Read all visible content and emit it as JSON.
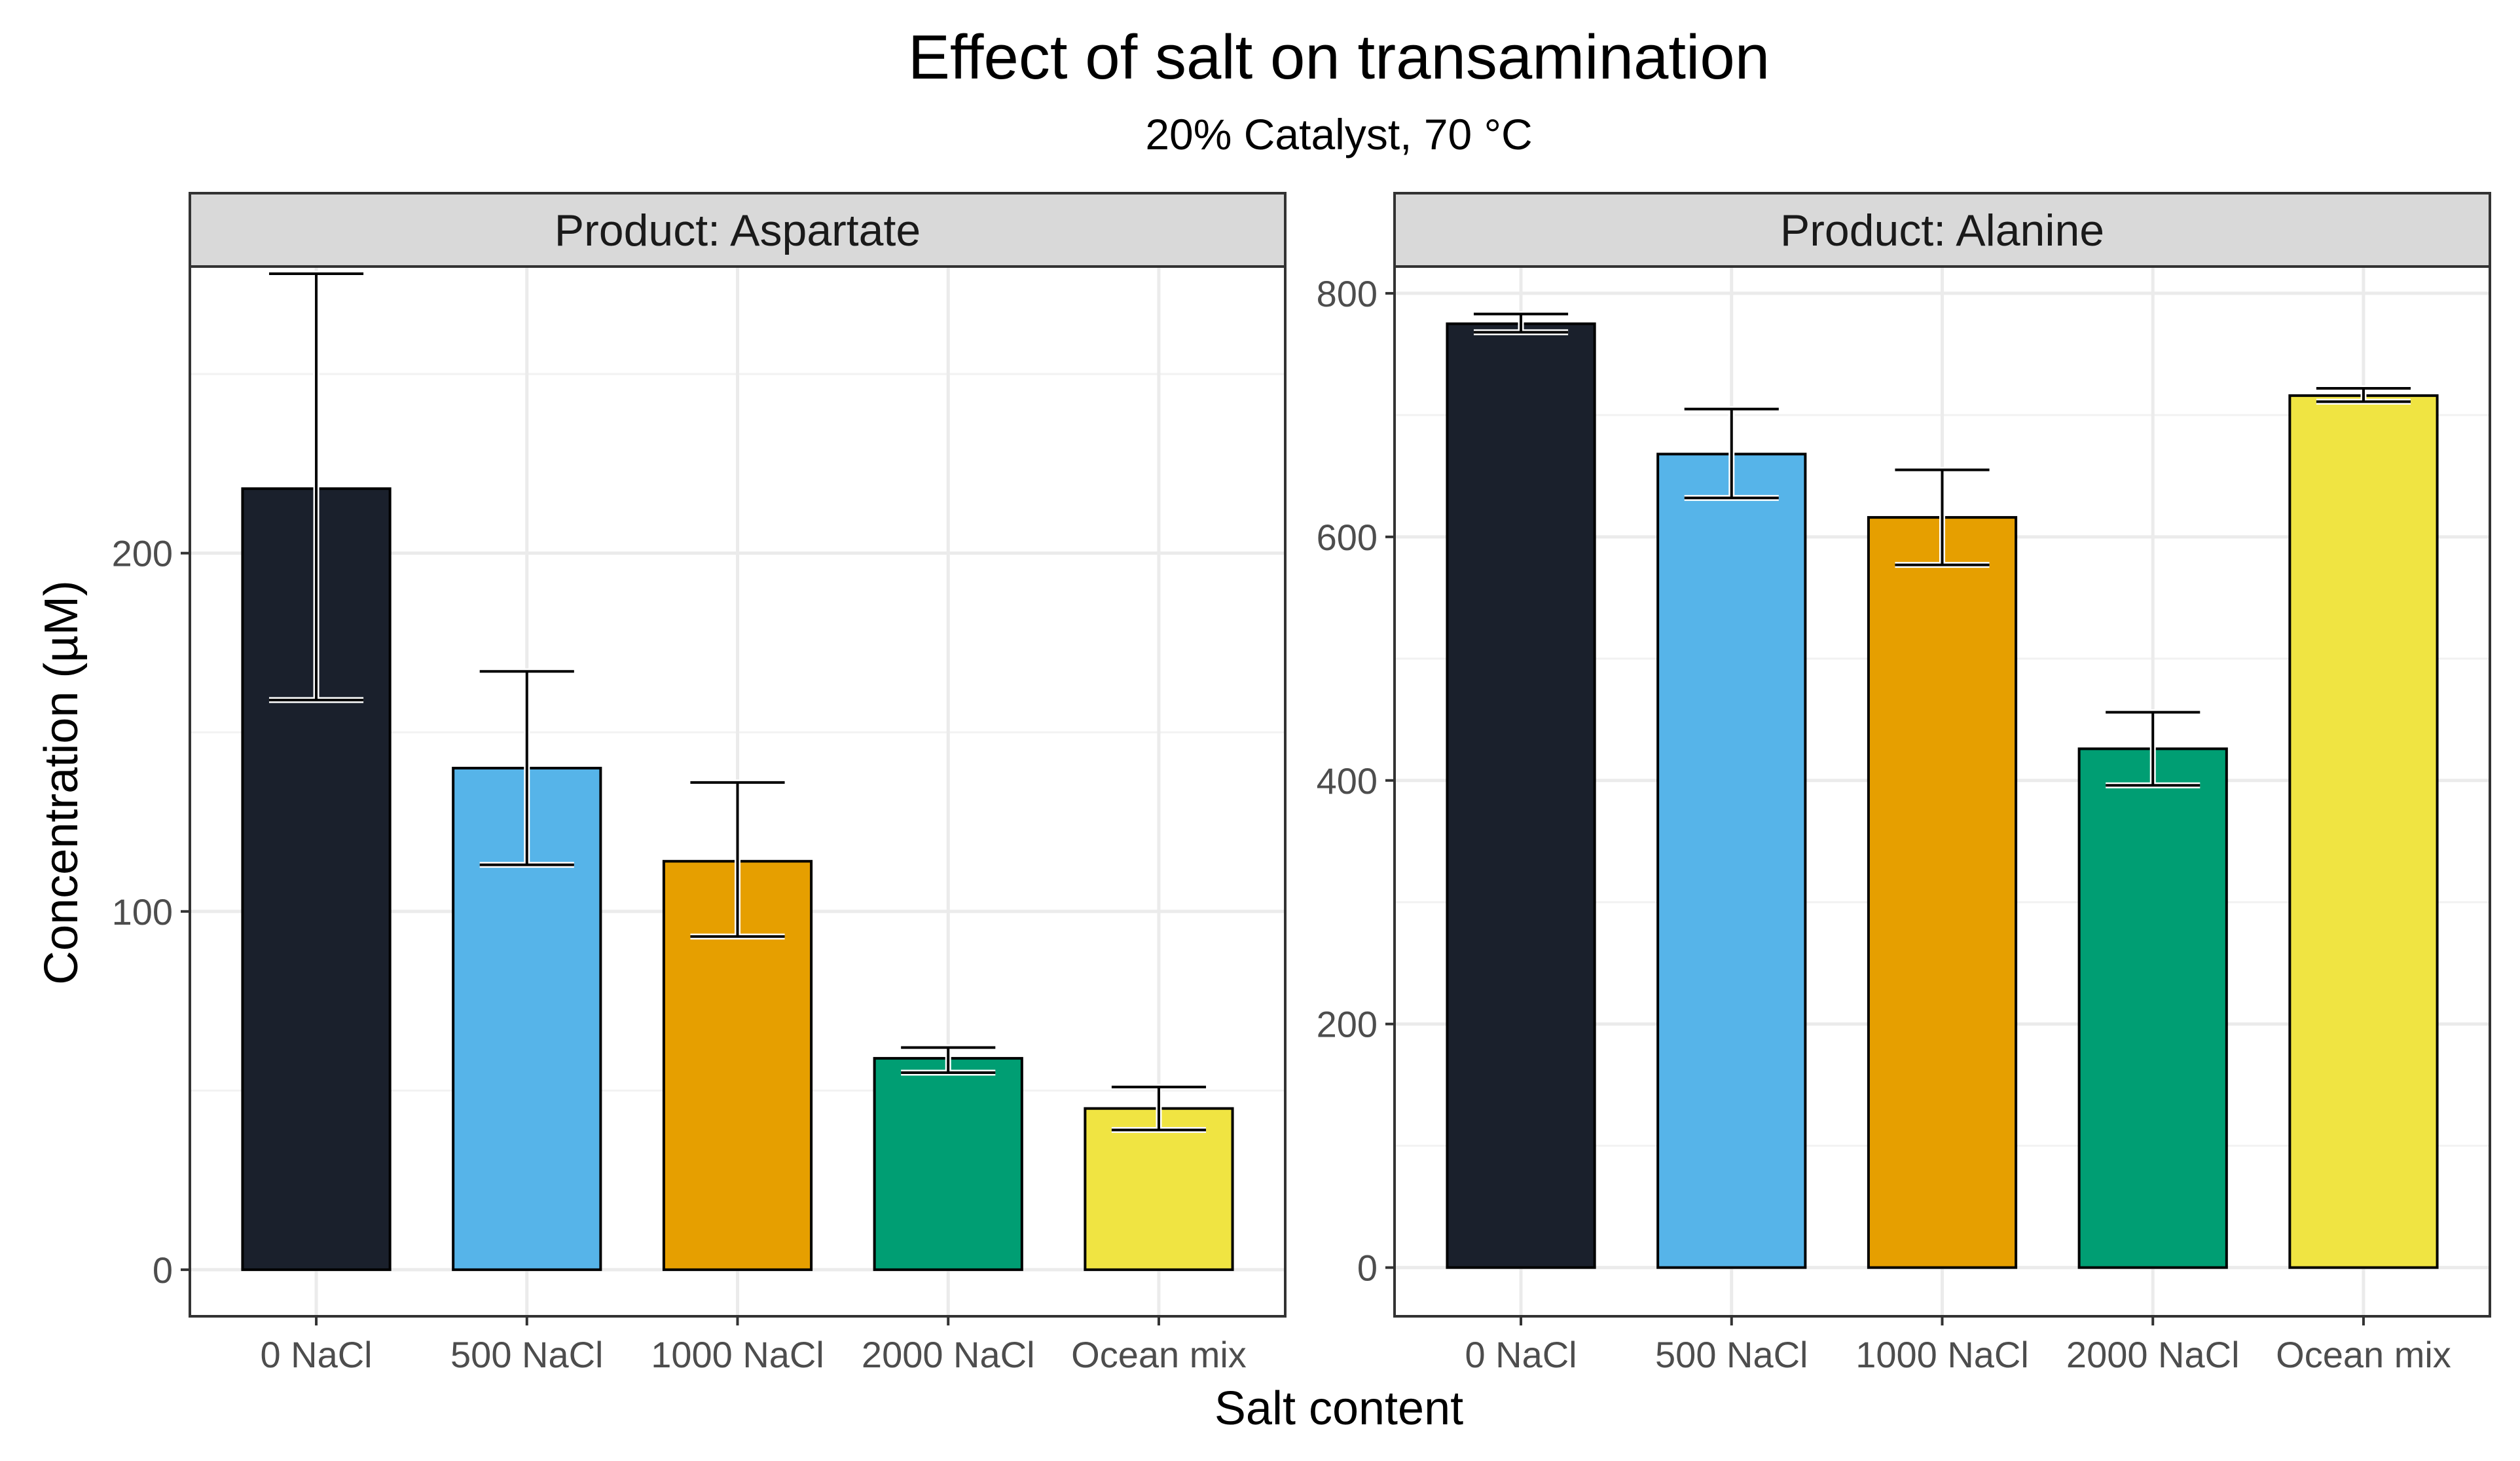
{
  "chart_data": {
    "type": "bar",
    "title": "Effect of salt on transamination",
    "subtitle": "20% Catalyst, 70 °C",
    "xlabel": "Salt content",
    "ylabel": "Concentration (µM)",
    "categories": [
      "0 NaCl",
      "500 NaCl",
      "1000 NaCl",
      "2000 NaCl",
      "Ocean mix"
    ],
    "colors": [
      "#1a202c",
      "#56b4e9",
      "#e69f00",
      "#009e73",
      "#f0e442"
    ],
    "grid": true,
    "facets": [
      {
        "strip_label": "Product: Aspartate",
        "ylim": [
          -13,
          280
        ],
        "yticks": [
          0,
          100,
          200
        ],
        "minor_yticks": [
          50,
          150,
          250
        ],
        "values": [
          218,
          140,
          114,
          59,
          45
        ],
        "error_low": [
          159,
          113,
          93,
          55,
          39
        ],
        "error_high": [
          278,
          167,
          136,
          62,
          51
        ]
      },
      {
        "strip_label": "Product: Alanine",
        "ylim": [
          -40,
          822
        ],
        "yticks": [
          0,
          200,
          400,
          600,
          800
        ],
        "minor_yticks": [
          100,
          300,
          500,
          700
        ],
        "values": [
          775,
          668,
          616,
          426,
          716
        ],
        "error_low": [
          768,
          632,
          577,
          396,
          711
        ],
        "error_high": [
          783,
          705,
          655,
          456,
          722
        ]
      }
    ]
  }
}
